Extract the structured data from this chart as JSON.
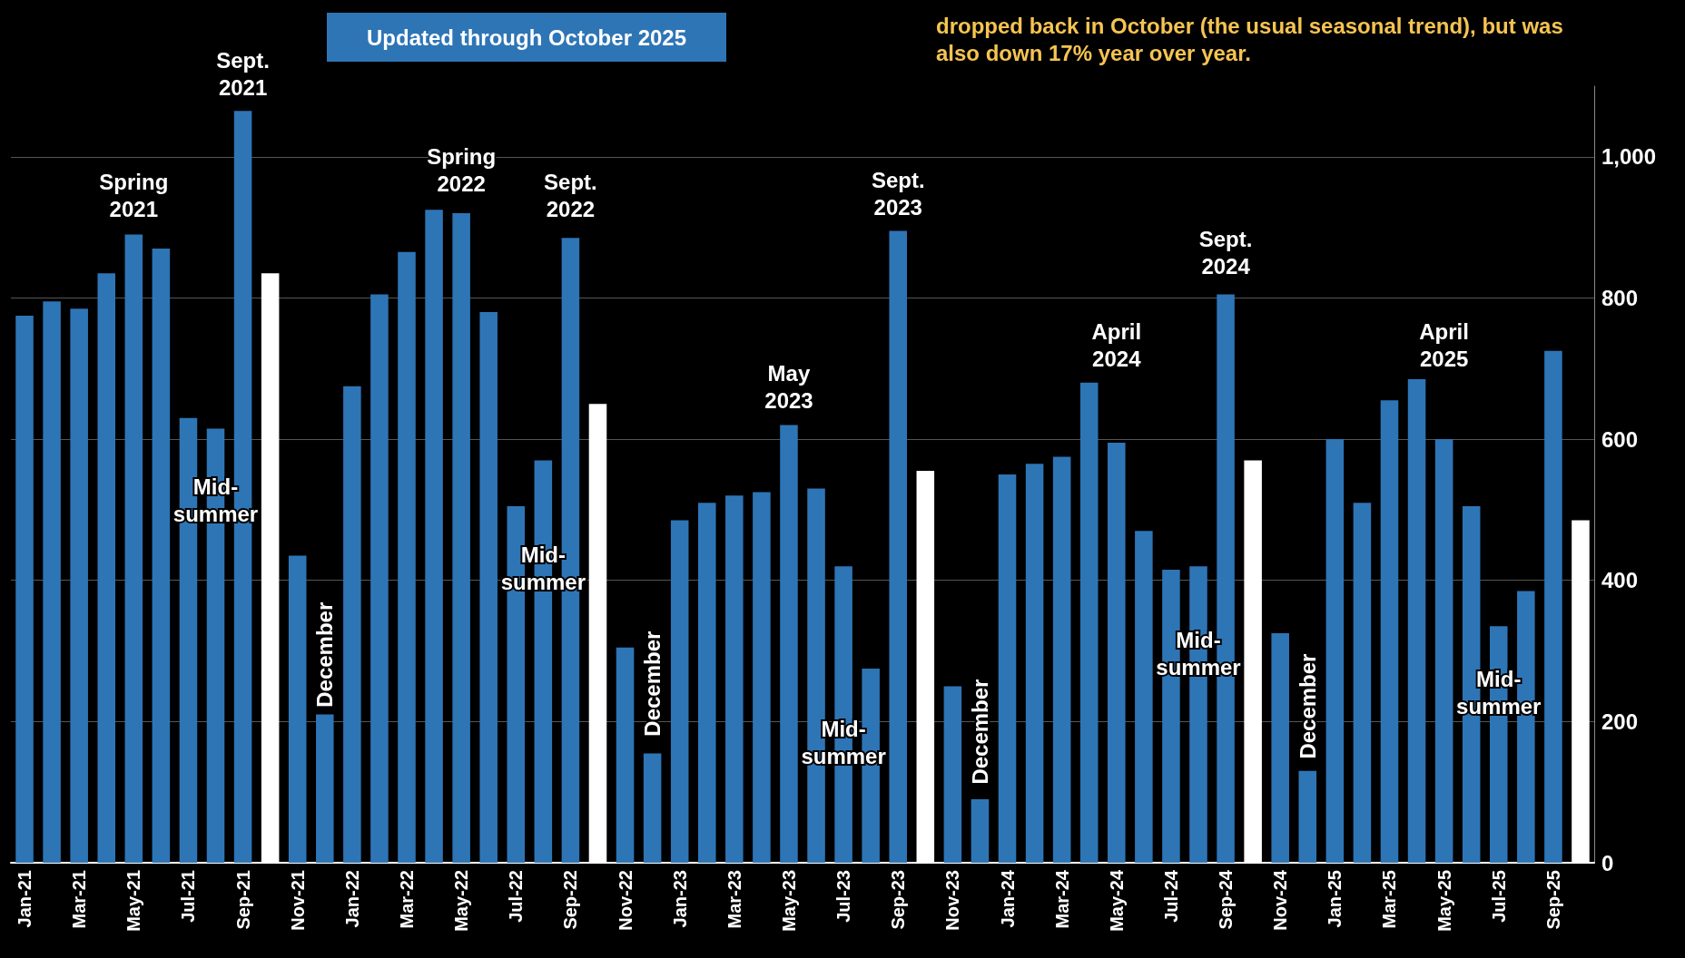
{
  "chart_data": {
    "type": "bar",
    "title": "dropped back in October (the usual seasonal trend), but was also down 17% year over year.",
    "categories": [
      "Jan-21",
      null,
      "Mar-21",
      null,
      "May-21",
      null,
      "Jul-21",
      null,
      "Sep-21",
      null,
      "Nov-21",
      null,
      "Jan-22",
      null,
      "Mar-22",
      null,
      "May-22",
      null,
      "Jul-22",
      null,
      "Sep-22",
      null,
      "Nov-22",
      null,
      "Jan-23",
      null,
      "Mar-23",
      null,
      "May-23",
      null,
      "Jul-23",
      null,
      "Sep-23",
      null,
      "Nov-23",
      null,
      "Jan-24",
      null,
      "Mar-24",
      null,
      "May-24",
      null,
      "Jul-24",
      null,
      "Sep-24",
      null,
      "Nov-24",
      null,
      "Jan-25",
      null,
      "Mar-25",
      null,
      "May-25",
      null,
      "Jul-25",
      null,
      "Sep-25",
      null
    ],
    "values": [
      775,
      795,
      785,
      835,
      890,
      870,
      630,
      615,
      1065,
      835,
      435,
      210,
      675,
      805,
      865,
      925,
      920,
      780,
      505,
      570,
      885,
      650,
      305,
      155,
      485,
      510,
      520,
      525,
      620,
      530,
      420,
      275,
      895,
      555,
      250,
      90,
      550,
      565,
      575,
      680,
      595,
      470,
      415,
      420,
      805,
      570,
      325,
      130,
      600,
      510,
      655,
      685,
      600,
      505,
      335,
      385,
      725,
      485
    ],
    "colors": [
      "#2e75b6",
      "#2e75b6",
      "#2e75b6",
      "#2e75b6",
      "#2e75b6",
      "#2e75b6",
      "#2e75b6",
      "#2e75b6",
      "#2e75b6",
      "#ffffff",
      "#2e75b6",
      "#2e75b6",
      "#2e75b6",
      "#2e75b6",
      "#2e75b6",
      "#2e75b6",
      "#2e75b6",
      "#2e75b6",
      "#2e75b6",
      "#2e75b6",
      "#2e75b6",
      "#ffffff",
      "#2e75b6",
      "#2e75b6",
      "#2e75b6",
      "#2e75b6",
      "#2e75b6",
      "#2e75b6",
      "#2e75b6",
      "#2e75b6",
      "#2e75b6",
      "#2e75b6",
      "#2e75b6",
      "#ffffff",
      "#2e75b6",
      "#2e75b6",
      "#2e75b6",
      "#2e75b6",
      "#2e75b6",
      "#2e75b6",
      "#2e75b6",
      "#2e75b6",
      "#2e75b6",
      "#2e75b6",
      "#2e75b6",
      "#ffffff",
      "#2e75b6",
      "#2e75b6",
      "#2e75b6",
      "#2e75b6",
      "#2e75b6",
      "#2e75b6",
      "#2e75b6",
      "#2e75b6",
      "#2e75b6",
      "#2e75b6",
      "#2e75b6",
      "#ffffff"
    ],
    "ylim": [
      0,
      1100
    ],
    "yticks": [
      0,
      200,
      400,
      600,
      800,
      {
        "value": 1000,
        "label": "1,000"
      }
    ],
    "grid": "y",
    "annotations": [
      "Updated through October 2025",
      "Spring 2021",
      "Sept. 2021",
      "Mid-summer",
      "December",
      "Spring 2022",
      "Sept. 2022",
      "Mid-summer",
      "December",
      "May 2023",
      "Sept. 2023",
      "Mid-summer",
      "December",
      "April 2024",
      "Sept. 2024",
      "Mid-summer",
      "December",
      "April 2025",
      "Mid-summer"
    ]
  }
}
